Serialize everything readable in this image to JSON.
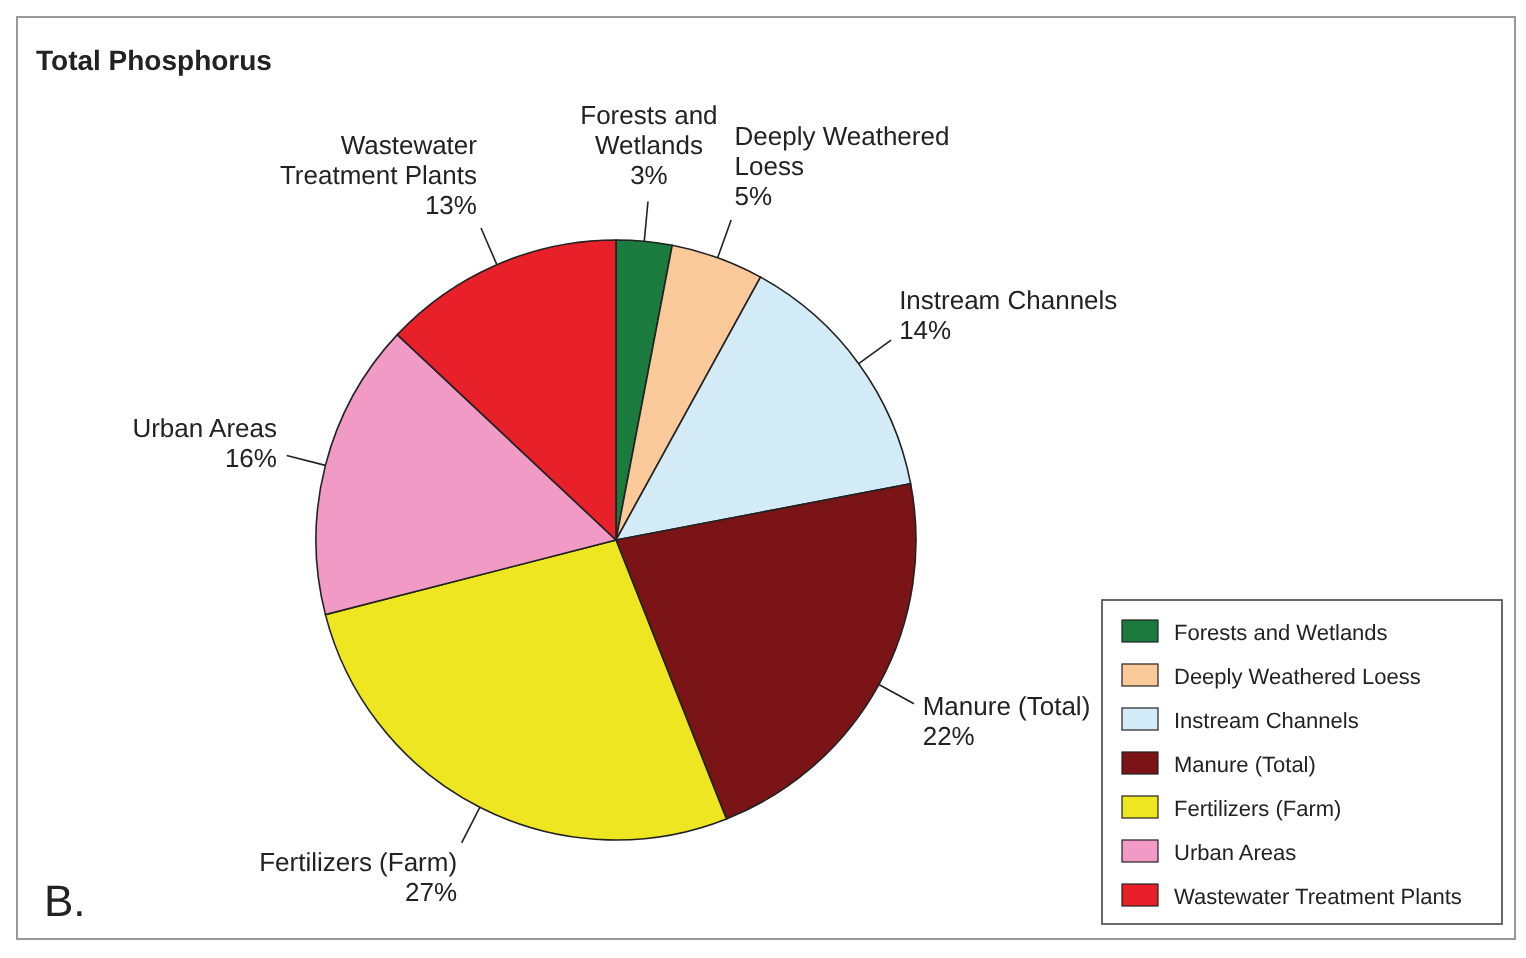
{
  "chart_data": {
    "type": "pie",
    "title": "Total Phosphorus",
    "categories": [
      "Forests and Wetlands",
      "Deeply Weathered Loess",
      "Instream Channels",
      "Manure (Total)",
      "Fertilizers (Farm)",
      "Urban Areas",
      "Wastewater Treatment Plants"
    ],
    "values": [
      3,
      5,
      14,
      22,
      27,
      16,
      13
    ],
    "colors": [
      "#1b7a3e",
      "#f9c99a",
      "#d3ebf7",
      "#7b1417",
      "#eee620",
      "#f29ac6",
      "#e8202a"
    ],
    "value_labels": [
      "3%",
      "5%",
      "14%",
      "22%",
      "27%",
      "16%",
      "13%"
    ],
    "legend": "bottom right",
    "annotations": [
      "B."
    ]
  }
}
